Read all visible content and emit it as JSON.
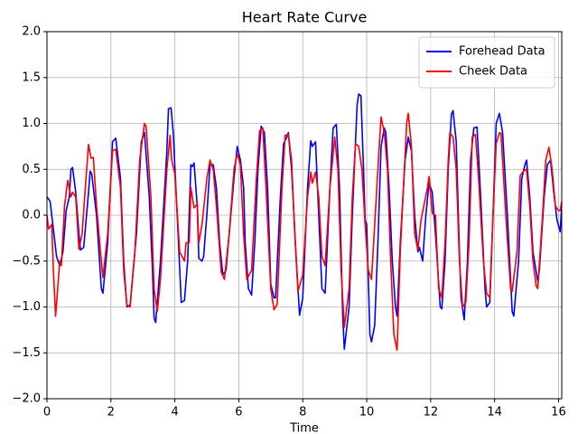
{
  "chart_data": {
    "type": "line",
    "title": "Heart Rate Curve",
    "x_label": "Time",
    "xlim": [
      0,
      16.1
    ],
    "xticks": [
      0,
      2,
      4,
      6,
      8,
      10,
      12,
      14,
      16
    ],
    "ylim": [
      -2.0,
      2.0
    ],
    "yticks": [
      {
        "value": -2.0,
        "label": "−2.0"
      },
      {
        "value": -1.5,
        "label": "−1.5"
      },
      {
        "value": -1.0,
        "label": "−1.0"
      },
      {
        "value": -0.5,
        "label": "−0.5"
      },
      {
        "value": 0.0,
        "label": "0.0"
      },
      {
        "value": 0.5,
        "label": "0.5"
      },
      {
        "value": 1.0,
        "label": "1.0"
      },
      {
        "value": 1.5,
        "label": "1.5"
      },
      {
        "value": 2.0,
        "label": "2.0"
      }
    ],
    "grid": true,
    "legend": "upper right",
    "series": [
      {
        "name": "Forehead Data",
        "color": "#0000ff",
        "x": [
          0,
          0.1,
          0.3,
          0.4,
          0.5,
          0.6,
          0.7,
          0.75,
          0.8,
          0.9,
          1.0,
          1.05,
          1.15,
          1.3,
          1.35,
          1.4,
          1.55,
          1.7,
          1.75,
          1.9,
          2.05,
          2.15,
          2.3,
          2.4,
          2.5,
          2.6,
          2.8,
          2.95,
          3.05,
          3.2,
          3.3,
          3.35,
          3.4,
          3.55,
          3.75,
          3.8,
          3.88,
          3.95,
          4.1,
          4.2,
          4.3,
          4.4,
          4.5,
          4.55,
          4.6,
          4.7,
          4.75,
          4.85,
          4.9,
          5.0,
          5.1,
          5.2,
          5.3,
          5.4,
          5.5,
          5.6,
          5.75,
          5.85,
          5.95,
          6.05,
          6.15,
          6.2,
          6.3,
          6.4,
          6.5,
          6.6,
          6.7,
          6.8,
          6.9,
          7.0,
          7.1,
          7.15,
          7.3,
          7.4,
          7.5,
          7.55,
          7.65,
          7.8,
          7.9,
          8.0,
          8.15,
          8.25,
          8.3,
          8.4,
          8.5,
          8.6,
          8.7,
          8.85,
          8.95,
          9.05,
          9.15,
          9.25,
          9.3,
          9.45,
          9.55,
          9.7,
          9.75,
          9.82,
          9.9,
          9.95,
          10.0,
          10.1,
          10.15,
          10.25,
          10.35,
          10.45,
          10.55,
          10.6,
          10.7,
          10.8,
          10.9,
          10.95,
          11.05,
          11.2,
          11.3,
          11.4,
          11.5,
          11.6,
          11.65,
          11.75,
          11.85,
          11.95,
          12.05,
          12.15,
          12.3,
          12.35,
          12.45,
          12.55,
          12.65,
          12.7,
          12.8,
          12.9,
          12.95,
          13.05,
          13.15,
          13.25,
          13.35,
          13.45,
          13.55,
          13.7,
          13.75,
          13.85,
          13.95,
          14.05,
          14.15,
          14.25,
          14.4,
          14.55,
          14.6,
          14.75,
          14.85,
          14.95,
          15.0,
          15.1,
          15.2,
          15.35,
          15.4,
          15.55,
          15.65,
          15.75,
          15.85,
          15.95,
          16.05,
          16.1
        ],
        "values": [
          0.2,
          0.15,
          -0.45,
          -0.55,
          -0.4,
          0.05,
          0.2,
          0.5,
          0.52,
          0.25,
          -0.2,
          -0.38,
          -0.35,
          0.25,
          0.48,
          0.45,
          0.0,
          -0.8,
          -0.85,
          -0.3,
          0.8,
          0.84,
          0.4,
          -0.5,
          -1.0,
          -0.98,
          -0.2,
          0.8,
          0.9,
          0.2,
          -0.6,
          -1.12,
          -1.17,
          -0.5,
          0.7,
          1.16,
          1.17,
          0.9,
          -0.2,
          -0.95,
          -0.93,
          -0.5,
          0.55,
          0.53,
          0.57,
          0.1,
          -0.47,
          -0.5,
          -0.45,
          0.0,
          0.55,
          0.55,
          0.3,
          -0.3,
          -0.65,
          -0.6,
          0.0,
          0.4,
          0.75,
          0.6,
          0.3,
          -0.3,
          -0.8,
          -0.87,
          -0.3,
          0.5,
          0.97,
          0.9,
          0.3,
          -0.75,
          -0.9,
          -0.9,
          0.2,
          0.78,
          0.85,
          0.9,
          0.5,
          -0.5,
          -1.09,
          -0.9,
          0.3,
          0.81,
          0.75,
          0.8,
          0.0,
          -0.8,
          -0.85,
          0.3,
          0.95,
          0.99,
          0.3,
          -1.1,
          -1.46,
          -1.0,
          0.0,
          1.2,
          1.32,
          1.3,
          0.5,
          -0.05,
          -0.1,
          -1.3,
          -1.38,
          -1.2,
          -0.3,
          0.75,
          0.95,
          0.9,
          0.3,
          -0.5,
          -1.0,
          -1.1,
          -0.3,
          0.6,
          0.85,
          0.7,
          0.0,
          -0.4,
          -0.35,
          -0.5,
          0.0,
          0.35,
          0.25,
          -0.2,
          -1.0,
          -1.02,
          -0.5,
          0.5,
          1.1,
          1.14,
          0.8,
          -0.4,
          -0.9,
          -1.14,
          -0.5,
          0.6,
          0.95,
          0.96,
          0.3,
          -0.8,
          -1.0,
          -0.95,
          0.0,
          1.0,
          1.11,
          0.9,
          0.0,
          -1.05,
          -1.1,
          -0.5,
          0.4,
          0.55,
          0.6,
          0.2,
          -0.4,
          -0.72,
          -0.6,
          0.2,
          0.55,
          0.6,
          0.25,
          -0.05,
          -0.18,
          0.1
        ]
      },
      {
        "name": "Cheek Data",
        "color": "#ff0000",
        "x": [
          0,
          0.05,
          0.15,
          0.2,
          0.27,
          0.4,
          0.45,
          0.55,
          0.65,
          0.75,
          0.8,
          0.9,
          1.0,
          1.1,
          1.2,
          1.3,
          1.38,
          1.45,
          1.55,
          1.7,
          1.75,
          1.9,
          2.05,
          2.15,
          2.3,
          2.4,
          2.5,
          2.6,
          2.75,
          2.9,
          3.05,
          3.1,
          3.25,
          3.35,
          3.45,
          3.55,
          3.75,
          3.85,
          3.9,
          4.0,
          4.15,
          4.3,
          4.35,
          4.45,
          4.5,
          4.6,
          4.7,
          4.75,
          4.85,
          5.0,
          5.1,
          5.2,
          5.3,
          5.45,
          5.55,
          5.7,
          5.85,
          5.95,
          6.05,
          6.15,
          6.25,
          6.4,
          6.55,
          6.65,
          6.75,
          6.85,
          7.0,
          7.1,
          7.2,
          7.35,
          7.45,
          7.55,
          7.65,
          7.75,
          7.85,
          8.0,
          8.15,
          8.25,
          8.3,
          8.4,
          8.5,
          8.6,
          8.7,
          8.85,
          9.0,
          9.1,
          9.2,
          9.3,
          9.45,
          9.55,
          9.65,
          9.75,
          9.85,
          9.95,
          10.05,
          10.15,
          10.3,
          10.4,
          10.45,
          10.55,
          10.65,
          10.75,
          10.85,
          10.95,
          11.05,
          11.15,
          11.25,
          11.3,
          11.4,
          11.5,
          11.6,
          11.7,
          11.9,
          11.95,
          12.05,
          12.15,
          12.25,
          12.35,
          12.45,
          12.55,
          12.6,
          12.7,
          12.8,
          12.9,
          13.0,
          13.1,
          13.2,
          13.3,
          13.4,
          13.5,
          13.65,
          13.75,
          13.85,
          13.95,
          14.05,
          14.15,
          14.2,
          14.35,
          14.5,
          14.55,
          14.7,
          14.8,
          14.9,
          15.0,
          15.1,
          15.2,
          15.3,
          15.35,
          15.5,
          15.6,
          15.7,
          15.8,
          15.9,
          16.0,
          16.05,
          16.1
        ],
        "values": [
          0.0,
          -0.15,
          -0.1,
          -0.6,
          -1.1,
          -0.5,
          -0.55,
          0.1,
          0.38,
          0.2,
          0.25,
          0.2,
          -0.37,
          -0.2,
          0.3,
          0.77,
          0.62,
          0.63,
          0.1,
          -0.5,
          -0.68,
          -0.2,
          0.7,
          0.72,
          0.3,
          -0.6,
          -0.98,
          -1.0,
          -0.4,
          0.6,
          1.0,
          0.97,
          0.2,
          -0.8,
          -1.05,
          -0.7,
          0.5,
          0.87,
          0.6,
          0.45,
          -0.4,
          -0.5,
          -0.3,
          -0.3,
          0.3,
          0.08,
          0.12,
          -0.3,
          -0.1,
          0.4,
          0.6,
          0.5,
          0.1,
          -0.62,
          -0.7,
          -0.2,
          0.5,
          0.67,
          0.55,
          -0.2,
          -0.7,
          -0.6,
          0.4,
          0.92,
          0.95,
          0.3,
          -0.8,
          -1.03,
          -0.97,
          0.3,
          0.87,
          0.88,
          0.6,
          -0.2,
          -0.83,
          -0.65,
          0.2,
          0.47,
          0.35,
          0.47,
          0.2,
          -0.45,
          -0.55,
          0.3,
          0.85,
          0.5,
          -0.6,
          -1.22,
          -0.8,
          0.2,
          0.78,
          0.75,
          0.5,
          -0.1,
          -0.6,
          -0.7,
          0.2,
          0.8,
          1.07,
          0.9,
          0.5,
          -0.5,
          -1.3,
          -1.47,
          -0.4,
          0.3,
          1.0,
          1.11,
          0.75,
          -0.2,
          -0.38,
          -0.05,
          0.3,
          0.42,
          0.02,
          0.0,
          -0.8,
          -0.9,
          -0.3,
          0.6,
          0.9,
          0.85,
          0.5,
          -0.5,
          -1.0,
          -0.95,
          -0.3,
          0.85,
          0.88,
          0.4,
          -0.5,
          -0.85,
          -0.9,
          0.0,
          0.78,
          0.9,
          0.89,
          0.0,
          -0.8,
          -0.83,
          -0.4,
          0.43,
          0.48,
          0.5,
          0.1,
          -0.5,
          -0.77,
          -0.8,
          0.0,
          0.6,
          0.74,
          0.5,
          0.1,
          0.05,
          0.05,
          0.15
        ]
      }
    ]
  }
}
